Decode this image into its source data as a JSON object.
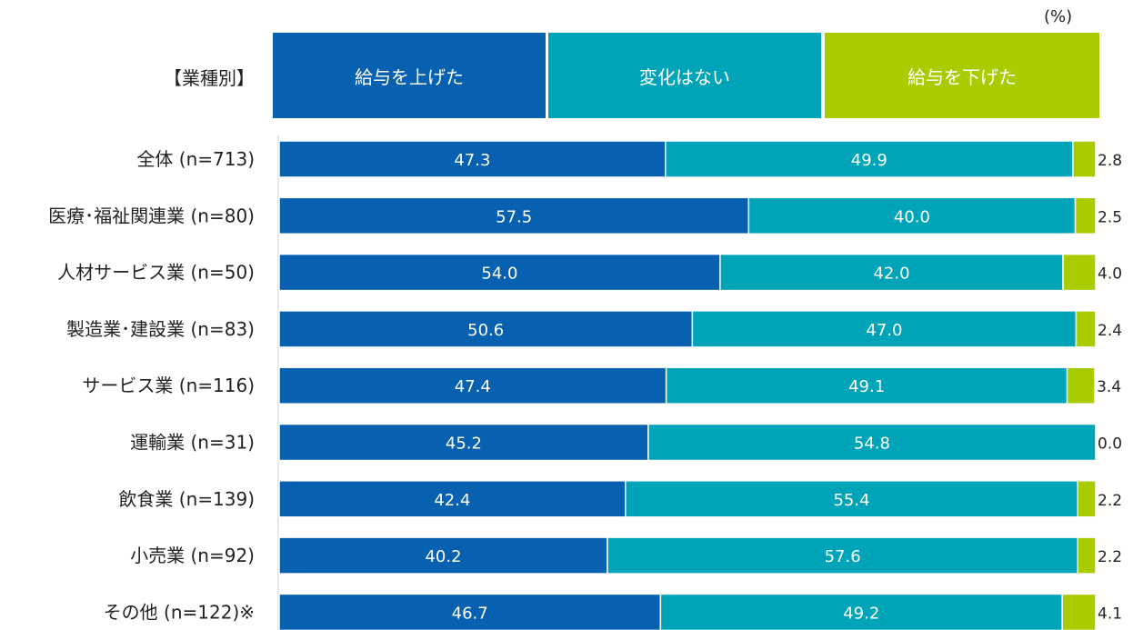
{
  "unit_label": "(%)",
  "category_header": "【業種別】",
  "colors": {
    "raised": "#0860B0",
    "unchanged": "#00A4B8",
    "lowered": "#A8CC00"
  },
  "chart_data": {
    "type": "bar",
    "orientation": "horizontal",
    "stacked": true,
    "percent": true,
    "xlim": [
      0,
      100
    ],
    "categories": [
      "全体 (n=713)",
      "医療･福祉関連業 (n=80)",
      "人材サービス業 (n=50)",
      "製造業･建設業 (n=83)",
      "サービス業 (n=116)",
      "運輸業 (n=31)",
      "飲食業 (n=139)",
      "小売業 (n=92)",
      "その他 (n=122)※"
    ],
    "series": [
      {
        "name": "給与を上げた",
        "values": [
          47.3,
          57.5,
          54.0,
          50.6,
          47.4,
          45.2,
          42.4,
          40.2,
          46.7
        ]
      },
      {
        "name": "変化はない",
        "values": [
          49.9,
          40.0,
          42.0,
          47.0,
          49.1,
          54.8,
          55.4,
          57.6,
          49.2
        ]
      },
      {
        "name": "給与を下げた",
        "values": [
          2.8,
          2.5,
          4.0,
          2.4,
          3.4,
          0.0,
          2.2,
          2.2,
          4.1
        ]
      }
    ]
  }
}
